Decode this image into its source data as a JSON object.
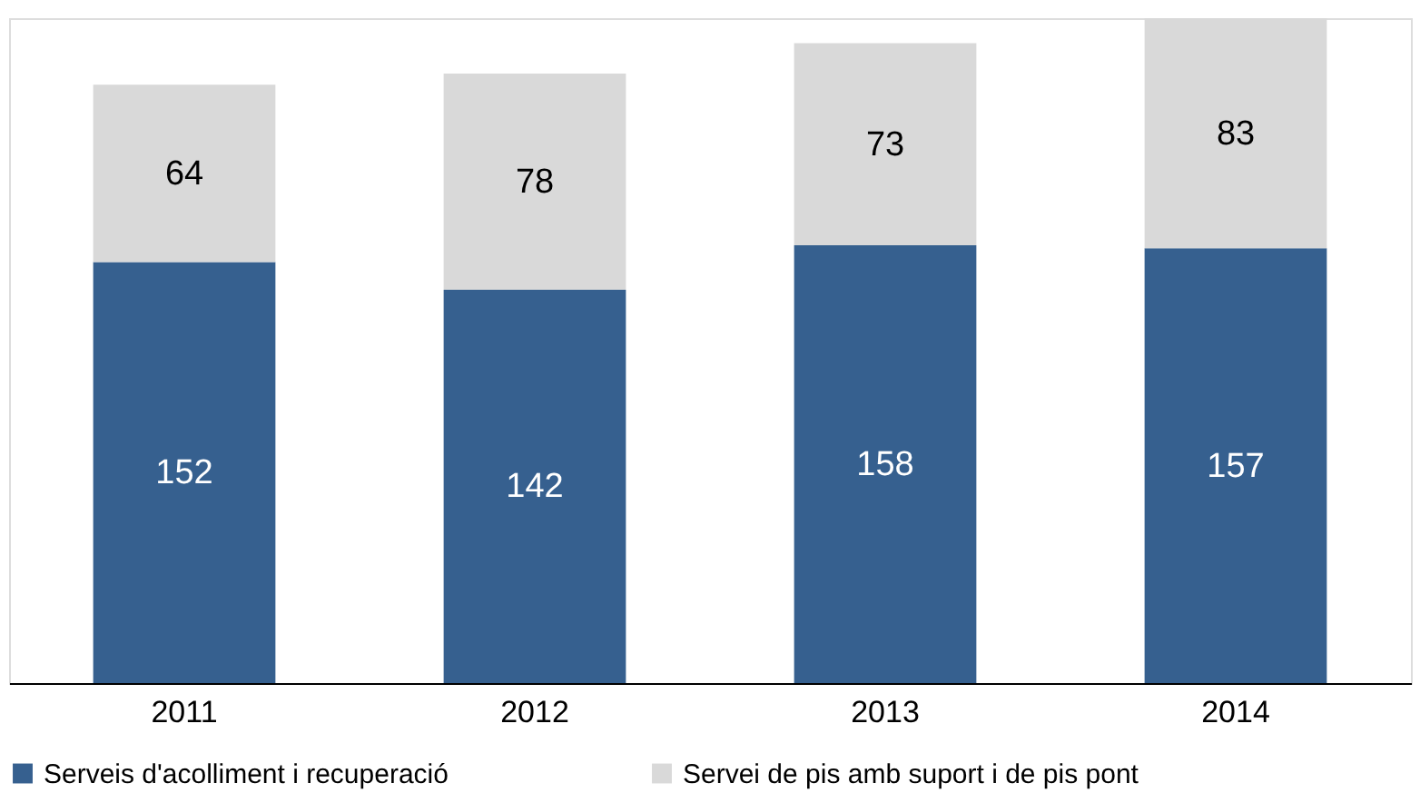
{
  "chart_data": {
    "type": "bar",
    "stacked": true,
    "categories": [
      "2011",
      "2012",
      "2013",
      "2014"
    ],
    "series": [
      {
        "name": "Serveis d'acolliment i recuperació",
        "color": "#36608f",
        "values": [
          152,
          142,
          158,
          157
        ]
      },
      {
        "name": "Servei de pis amb suport i de pis pont",
        "color": "#d9d9d9",
        "values": [
          64,
          78,
          73,
          83
        ]
      }
    ],
    "data_labels": true,
    "legend": "bottom",
    "grid": false
  }
}
